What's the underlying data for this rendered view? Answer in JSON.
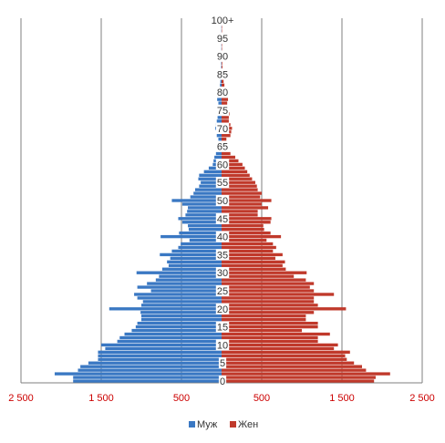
{
  "chart_data": {
    "type": "bar",
    "orientation": "horizontal",
    "subtype": "population-pyramid",
    "title": "",
    "xlabel": "",
    "ylabel": "",
    "xlim": [
      -2500,
      2500
    ],
    "x_ticks": [
      -2500,
      -1500,
      -500,
      500,
      1500,
      2500
    ],
    "x_tick_labels": [
      "2 500",
      "1 500",
      "500",
      "500",
      "1 500",
      "2 500"
    ],
    "y_tick_labels": [
      "0",
      "5",
      "10",
      "15",
      "20",
      "25",
      "30",
      "35",
      "40",
      "45",
      "50",
      "55",
      "60",
      "65",
      "70",
      "75",
      "80",
      "85",
      "90",
      "95",
      "100+"
    ],
    "grid": "vertical",
    "legend_position": "bottom",
    "colors": {
      "male": "#3a78c3",
      "female": "#c0392b",
      "axis_tick": "#cc0000",
      "grid": "#7f7f7f"
    },
    "ages": [
      0,
      1,
      2,
      3,
      4,
      5,
      6,
      7,
      8,
      9,
      10,
      11,
      12,
      13,
      14,
      15,
      16,
      17,
      18,
      19,
      20,
      21,
      22,
      23,
      24,
      25,
      26,
      27,
      28,
      29,
      30,
      31,
      32,
      33,
      34,
      35,
      36,
      37,
      38,
      39,
      40,
      41,
      42,
      43,
      44,
      45,
      46,
      47,
      48,
      49,
      50,
      51,
      52,
      53,
      54,
      55,
      56,
      57,
      58,
      59,
      60,
      61,
      62,
      63,
      64,
      65,
      66,
      67,
      68,
      69,
      70,
      71,
      72,
      73,
      74,
      75,
      76,
      77,
      78,
      79,
      80,
      81,
      82,
      83,
      84,
      85,
      86,
      87,
      88,
      89,
      90,
      91,
      92,
      93,
      94,
      95,
      96,
      97,
      98,
      99,
      100
    ],
    "series": [
      {
        "name": "Муж",
        "values": [
          1850,
          1850,
          2080,
          1790,
          1760,
          1660,
          1540,
          1540,
          1540,
          1450,
          1500,
          1300,
          1270,
          1210,
          1120,
          1070,
          1050,
          1000,
          1000,
          1010,
          1400,
          1000,
          980,
          1050,
          1090,
          880,
          1050,
          930,
          820,
          780,
          1060,
          740,
          660,
          680,
          640,
          770,
          620,
          540,
          510,
          400,
          760,
          530,
          410,
          420,
          490,
          540,
          450,
          430,
          420,
          490,
          620,
          390,
          350,
          330,
          280,
          260,
          290,
          280,
          220,
          160,
          110,
          100,
          90,
          70,
          60,
          40,
          40,
          40,
          60,
          60,
          80,
          70,
          60,
          50,
          50,
          45,
          45,
          40,
          55,
          50,
          40,
          25,
          20,
          15,
          10,
          5,
          5,
          5,
          5,
          5,
          5,
          3,
          3,
          3,
          3,
          3,
          3,
          3,
          3,
          3,
          3
        ]
      },
      {
        "name": "Жен",
        "values": [
          1900,
          1920,
          2100,
          1800,
          1750,
          1650,
          1560,
          1540,
          1600,
          1400,
          1450,
          1200,
          1200,
          1350,
          1000,
          1200,
          1200,
          1050,
          1050,
          1150,
          1550,
          1200,
          1150,
          1150,
          1400,
          1150,
          1100,
          1150,
          1050,
          900,
          1060,
          800,
          760,
          790,
          670,
          760,
          640,
          680,
          640,
          560,
          740,
          610,
          530,
          520,
          610,
          620,
          450,
          450,
          580,
          500,
          620,
          480,
          500,
          450,
          440,
          420,
          380,
          350,
          320,
          290,
          260,
          210,
          170,
          110,
          80,
          60,
          60,
          60,
          110,
          120,
          130,
          110,
          90,
          90,
          100,
          80,
          80,
          70,
          80,
          90,
          60,
          40,
          35,
          25,
          20,
          10,
          10,
          10,
          8,
          8,
          8,
          5,
          5,
          5,
          5,
          5,
          5,
          5,
          5,
          5,
          5
        ]
      }
    ]
  }
}
